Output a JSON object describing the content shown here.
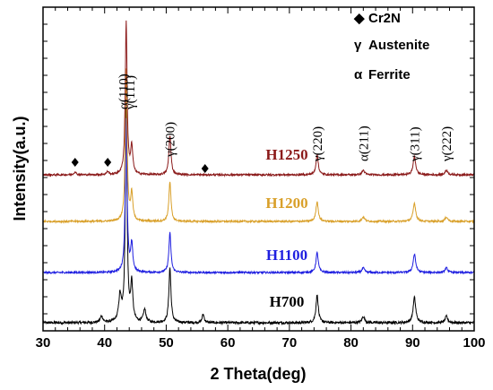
{
  "chart_data": {
    "type": "line",
    "xlabel": "2 Theta(deg)",
    "ylabel": "Intensity(a.u.)",
    "xlim": [
      30,
      100
    ],
    "xticks": [
      "30",
      "40",
      "50",
      "60",
      "70",
      "80",
      "90",
      "100"
    ],
    "legend": [
      {
        "symbol": "◆",
        "label": "Cr2N"
      },
      {
        "symbol": "γ",
        "label": "Austenite"
      },
      {
        "symbol": "α",
        "label": "Ferrite"
      }
    ],
    "peak_labels": [
      {
        "text": "α(110)",
        "x": 44.2
      },
      {
        "text": "γ(111)",
        "x": 43.5
      },
      {
        "text": "γ(200)",
        "x": 50.6
      },
      {
        "text": "γ(220)",
        "x": 74.5
      },
      {
        "text": "α(211)",
        "x": 82.0
      },
      {
        "text": "γ(311)",
        "x": 90.3
      },
      {
        "text": "γ(222)",
        "x": 95.5
      }
    ],
    "cr2n_markers": [
      35.2,
      40.5,
      56.3
    ],
    "peaks": [
      {
        "x": 43.5,
        "h": 1.0,
        "w": 0.35
      },
      {
        "x": 44.4,
        "h": 0.18,
        "w": 0.4
      },
      {
        "x": 50.6,
        "h": 0.26,
        "w": 0.4
      },
      {
        "x": 74.5,
        "h": 0.13,
        "w": 0.45
      },
      {
        "x": 82.0,
        "h": 0.03,
        "w": 0.5
      },
      {
        "x": 90.3,
        "h": 0.12,
        "w": 0.5
      },
      {
        "x": 95.5,
        "h": 0.03,
        "w": 0.5
      }
    ],
    "series": [
      {
        "name": "H700",
        "color": "#000000",
        "offset": 0.0,
        "extra_peaks": [
          {
            "x": 42.5,
            "h": 0.12,
            "w": 0.5
          },
          {
            "x": 46.5,
            "h": 0.06,
            "w": 0.5
          },
          {
            "x": 56.0,
            "h": 0.04,
            "w": 0.4
          },
          {
            "x": 39.5,
            "h": 0.03,
            "w": 0.5
          }
        ]
      },
      {
        "name": "H1100",
        "color": "#1f1fe0",
        "offset": 1.0,
        "extra_peaks": []
      },
      {
        "name": "H1200",
        "color": "#d9a02a",
        "offset": 2.0,
        "extra_peaks": []
      },
      {
        "name": "H1250",
        "color": "#8b1a1a",
        "offset": 3.0,
        "extra_peaks": [
          {
            "x": 35.2,
            "h": 0.02,
            "w": 0.4
          },
          {
            "x": 40.5,
            "h": 0.02,
            "w": 0.4
          }
        ]
      }
    ]
  }
}
